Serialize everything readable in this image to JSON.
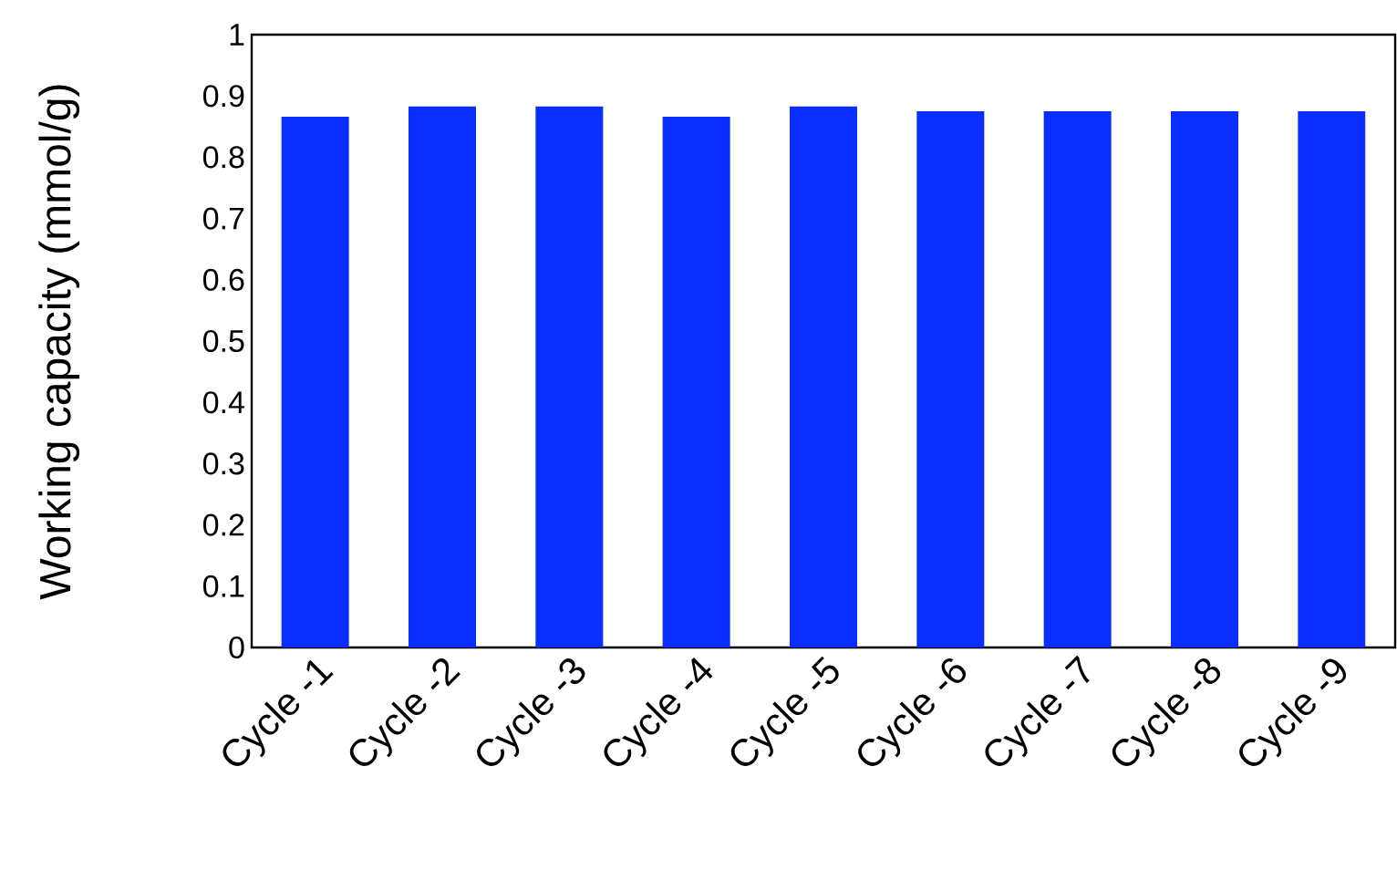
{
  "chart_data": {
    "type": "bar",
    "ylabel": "Working capacity (mmol/g)",
    "categories": [
      "Cycle -1",
      "Cycle -2",
      "Cycle -3",
      "Cycle -4",
      "Cycle -5",
      "Cycle -6",
      "Cycle -7",
      "Cycle -8",
      "Cycle -9"
    ],
    "values": [
      0.866,
      0.883,
      0.883,
      0.866,
      0.883,
      0.875,
      0.875,
      0.875,
      0.875
    ],
    "color": "#0a2eff",
    "ylim": [
      0,
      1
    ],
    "yticks": [
      0,
      0.1,
      0.2,
      0.3,
      0.4,
      0.5,
      0.6,
      0.7,
      0.8,
      0.9,
      1
    ],
    "grid": false
  }
}
